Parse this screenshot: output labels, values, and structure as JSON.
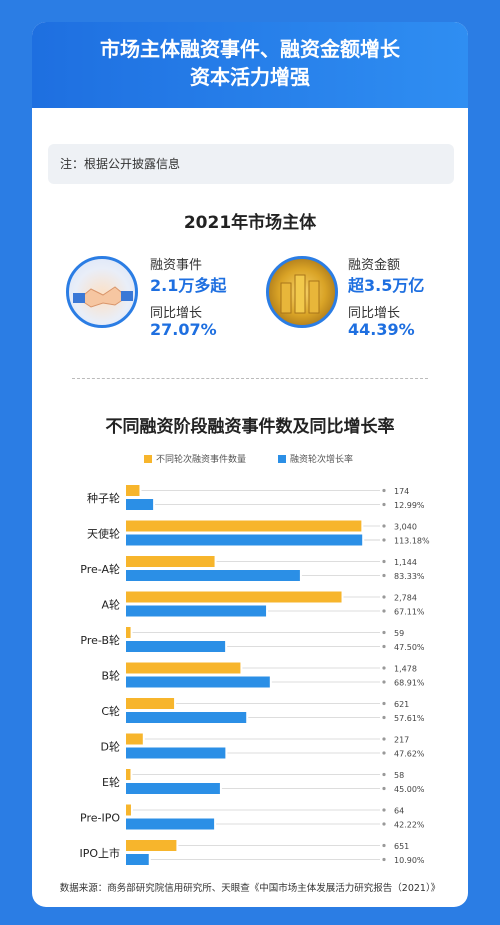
{
  "header": {
    "line1": "市场主体融资事件、融资金额增长",
    "line2": "资本活力增强"
  },
  "note": "注：根据公开披露信息",
  "stats_title": "2021年市场主体",
  "stats": {
    "left": {
      "label1": "融资事件",
      "value1": "2.1万多起",
      "label2": "同比增长",
      "value2": "27.07%"
    },
    "right": {
      "label1": "融资金额",
      "value1": "超3.5万亿",
      "label2": "同比增长",
      "value2": "44.39%"
    }
  },
  "colors": {
    "count": "#f7b52c",
    "growth": "#2b8fe6",
    "header": "#1e6fe0"
  },
  "chart_data": {
    "type": "bar",
    "title": "不同融资阶段融资事件数及同比增长率",
    "categories": [
      "种子轮",
      "天使轮",
      "Pre-A轮",
      "A轮",
      "Pre-B轮",
      "B轮",
      "C轮",
      "D轮",
      "E轮",
      "Pre-IPO",
      "IPO上市"
    ],
    "series": [
      {
        "name": "不同轮次融资事件数量",
        "values": [
          174,
          3040,
          1144,
          2784,
          59,
          1478,
          621,
          217,
          58,
          64,
          651
        ],
        "labels": [
          "174",
          "3,040",
          "1,144",
          "2,784",
          "59",
          "1,478",
          "621",
          "217",
          "58",
          "64",
          "651"
        ]
      },
      {
        "name": "融资轮次增长率",
        "values": [
          12.99,
          113.18,
          83.33,
          67.11,
          47.5,
          68.91,
          57.61,
          47.62,
          45.0,
          42.22,
          10.9
        ],
        "labels": [
          "12.99%",
          "113.18%",
          "83.33%",
          "67.11%",
          "47.50%",
          "68.91%",
          "57.61%",
          "47.62%",
          "45.00%",
          "42.22%",
          "10.90%"
        ]
      }
    ]
  },
  "source": "数据来源：商务部研究院信用研究所、天眼查《中国市场主体发展活力研究报告（2021）》"
}
